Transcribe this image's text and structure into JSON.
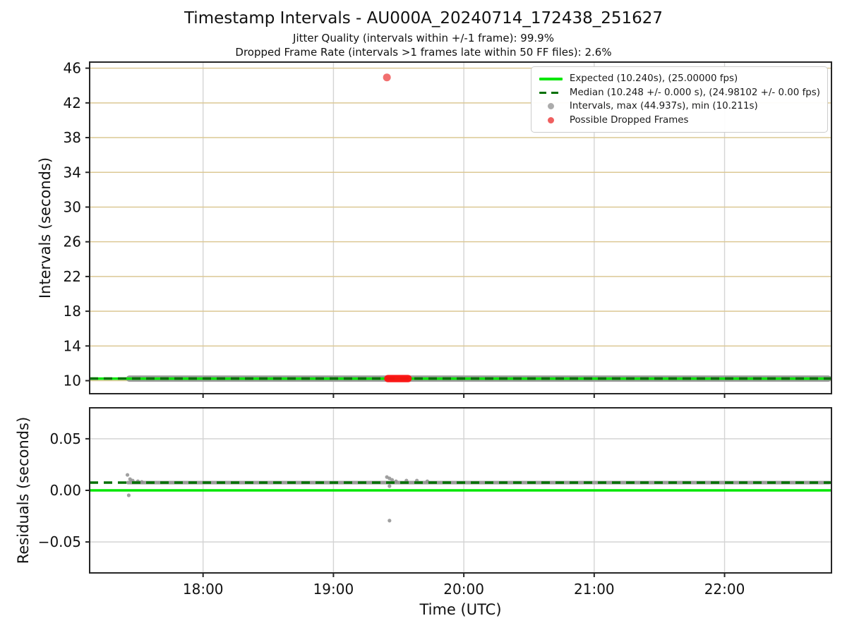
{
  "chart_data": {
    "type": "scatter",
    "title": "Timestamp Intervals - AU000A_20240714_172438_251627",
    "subtitles": [
      "Jitter Quality (intervals within +/-1 frame): 99.9%",
      "Dropped Frame Rate (intervals >1 frames late within 50 FF files): 2.6%"
    ],
    "xlabel": "Time (UTC)",
    "x_axis": {
      "xlim_hours": [
        17.13,
        22.82
      ],
      "tick_hours": [
        18,
        19,
        20,
        21,
        22
      ],
      "tick_labels": [
        "18:00",
        "19:00",
        "20:00",
        "21:00",
        "22:00"
      ],
      "grid": true
    },
    "panels": [
      {
        "name": "intervals",
        "ylabel": "Intervals (seconds)",
        "ylim": [
          8.5,
          46.7
        ],
        "yticks": [
          10,
          14,
          18,
          22,
          26,
          30,
          34,
          38,
          42,
          46
        ],
        "ytick_labels": [
          "10",
          "14",
          "18",
          "22",
          "26",
          "30",
          "34",
          "38",
          "42",
          "46"
        ],
        "grid_color_key": "grid_tan",
        "expected_line": {
          "value_s": 10.24,
          "fps": "25.00000"
        },
        "median_line": {
          "value_s": 10.248,
          "stderr_s": "0.000",
          "fps": "24.98102",
          "fps_err": "0.00"
        },
        "intervals_stats": {
          "max_s": 44.937,
          "min_s": 10.211
        },
        "series": [
          {
            "name": "intervals-band",
            "type": "band",
            "t_start": 17.41,
            "t_end": 22.82,
            "y": 10.24
          },
          {
            "name": "dropped-frames-cluster",
            "type": "cluster",
            "t_start": 19.4,
            "t_end": 19.59,
            "y": 10.24
          },
          {
            "name": "dropped-frame-outlier",
            "type": "point",
            "t": 19.41,
            "y": 44.937
          }
        ]
      },
      {
        "name": "residuals",
        "ylabel": "Residuals (seconds)",
        "ylim": [
          -0.08,
          0.08
        ],
        "yticks": [
          -0.05,
          0.0,
          0.05
        ],
        "ytick_labels": [
          "−0.05",
          "0.00",
          "0.05"
        ],
        "grid_color_key": "grid_gray",
        "expected_line": {
          "value_s": 0.0
        },
        "median_line": {
          "value_s": 0.0075
        },
        "series": [
          {
            "name": "residuals-band",
            "type": "band",
            "t_start": 17.41,
            "t_end": 22.82,
            "y": 0.0075
          }
        ],
        "points": [
          [
            17.42,
            0.015
          ],
          [
            17.44,
            0.0109
          ],
          [
            17.46,
            0.0095
          ],
          [
            17.5,
            0.0088
          ],
          [
            17.53,
            0.0082
          ],
          [
            17.43,
            -0.0048
          ],
          [
            19.41,
            0.0129
          ],
          [
            19.43,
            0.0116
          ],
          [
            19.45,
            0.0102
          ],
          [
            19.48,
            0.0088
          ],
          [
            19.56,
            0.0095
          ],
          [
            19.64,
            0.0095
          ],
          [
            19.72,
            0.0088
          ],
          [
            19.43,
            0.0041
          ],
          [
            19.43,
            -0.0293
          ]
        ]
      }
    ],
    "legend": {
      "position": "upper right",
      "items": [
        {
          "label": "Expected (10.240s), (25.00000 fps)",
          "marker": "solid-line",
          "color_key": "expected"
        },
        {
          "label": "Median (10.248 +/- 0.000 s), (24.98102 +/- 0.00 fps)",
          "marker": "dashed-line",
          "color_key": "median"
        },
        {
          "label": "Intervals, max (44.937s), min (10.211s)",
          "marker": "dot",
          "color_key": "intervals_marker"
        },
        {
          "label": "Possible Dropped Frames",
          "marker": "dot",
          "color_key": "dropped_marker"
        }
      ]
    },
    "colors": {
      "expected": "#00e600",
      "median": "#007000",
      "intervals_band": "#9b9b9b",
      "intervals_marker": "#ababab",
      "residual_point": "#8f8f8f",
      "dropped": "#ff1010",
      "dropped_marker": "#ef5f5f",
      "grid_tan": "#dcc894",
      "grid_gray": "#d4d4d4",
      "spine": "#262626",
      "tick_text": "#111111"
    }
  }
}
